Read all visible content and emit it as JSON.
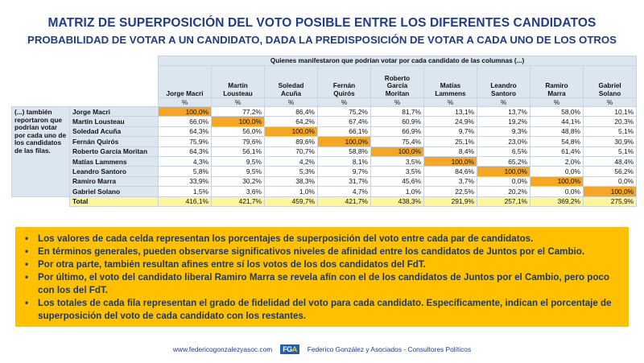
{
  "title_main": "MATRIZ DE SUPERPOSICIÓN DEL VOTO POSIBLE ENTRE LOS DIFERENTES CANDIDATOS",
  "title_sub": "PROBABILIDAD DE VOTAR A UN CANDIDATO, DADA LA PREDISPOSICIÓN DE VOTAR A CADA UNO DE LOS OTROS",
  "table": {
    "top_header": "Quienes manifestaron que podrían votar por cada candidato de las columnas (...)",
    "columns": [
      [
        "Jorge Macri"
      ],
      [
        "Martín",
        "Lousteau"
      ],
      [
        "Soledad",
        "Acuña"
      ],
      [
        "Fernán",
        "Quirós"
      ],
      [
        "Roberto",
        "García",
        "Moritan"
      ],
      [
        "Matías",
        "Lammens"
      ],
      [
        "Leandro",
        "Santoro"
      ],
      [
        "Ramiro",
        "Marra"
      ],
      [
        "Gabriel",
        "Solano"
      ]
    ],
    "pct_label": "%",
    "row_description": "(...) también reportaron que podrían votar por cada uno de los candidatos de las filas.",
    "rows": [
      {
        "label": "Jorge Macri",
        "values": [
          "100,0%",
          "77,2%",
          "86,4%",
          "75,2%",
          "81,7%",
          "13,1%",
          "13,7%",
          "58,0%",
          "10,1%"
        ]
      },
      {
        "label": "Martín Lousteau",
        "values": [
          "66,0%",
          "100,0%",
          "64,2%",
          "67,4%",
          "60,9%",
          "24,9%",
          "19,2%",
          "44,1%",
          "20,3%"
        ]
      },
      {
        "label": "Soledad Acuña",
        "values": [
          "64,3%",
          "56,0%",
          "100,0%",
          "66,1%",
          "66,9%",
          "9,7%",
          "9,3%",
          "48,8%",
          "5,1%"
        ]
      },
      {
        "label": "Fernán Quirós",
        "values": [
          "75,9%",
          "79,6%",
          "89,6%",
          "100,0%",
          "75,4%",
          "25,1%",
          "23,0%",
          "54,8%",
          "30,9%"
        ]
      },
      {
        "label": "Roberto García Moritan",
        "values": [
          "64,3%",
          "56,1%",
          "70,7%",
          "58,8%",
          "100,0%",
          "8,4%",
          "6,5%",
          "61,4%",
          "5,1%"
        ]
      },
      {
        "label": "Matías Lammens",
        "values": [
          "4,3%",
          "9,5%",
          "4,2%",
          "8,1%",
          "3,5%",
          "100,0%",
          "65,2%",
          "2,0%",
          "48,4%"
        ]
      },
      {
        "label": "Leandro Santoro",
        "values": [
          "5,8%",
          "9,5%",
          "5,3%",
          "9,7%",
          "3,5%",
          "84,6%",
          "100,0%",
          "0,0%",
          "56,2%"
        ]
      },
      {
        "label": "Ramiro Marra",
        "values": [
          "33,9%",
          "30,2%",
          "38,3%",
          "31,7%",
          "45,6%",
          "3,7%",
          "0,0%",
          "100,0%",
          "0,0%"
        ]
      },
      {
        "label": "Gabriel Solano",
        "values": [
          "1,5%",
          "3,6%",
          "1,0%",
          "4,7%",
          "1,0%",
          "22,5%",
          "20,2%",
          "0,0%",
          "100,0%"
        ]
      }
    ],
    "total": {
      "label": "Total",
      "values": [
        "416,1%",
        "421,7%",
        "459,7%",
        "421,7%",
        "438,3%",
        "291,9%",
        "257,1%",
        "369,2%",
        "275,9%"
      ]
    }
  },
  "notes": [
    "Los valores de cada celda representan los porcentajes de superposición del voto entre cada par de candidatos.",
    "En términos generales, pueden observarse significativos niveles de afinidad entre los candidatos de Juntos por el Cambio.",
    " Por otra parte, también resultan afines entre sí los votos de los dos candidatos del FdT.",
    "Por último, el voto del candidato liberal Ramiro Marra se revela afín con el de los candidatos de Juntos por el Cambio, pero poco con los del FdT.",
    "Los totales de cada fila representan el grado de fidelidad del voto para cada candidato. Específicamente, indican el porcentaje de superposición del voto de cada candidato con los restantes."
  ],
  "bullet": "•",
  "footer": {
    "url": "www.federicogonzalezyasoc.com",
    "logo_f": "FG",
    "logo_a": "A",
    "org": "Federico González y Asociados - Consultores Políticos"
  },
  "colors": {
    "title": "#1f3c88",
    "header_bg": "#dce6f1",
    "diagonal": "#f5a623",
    "total": "#fff59a",
    "notes_bg": "#ffc000"
  }
}
